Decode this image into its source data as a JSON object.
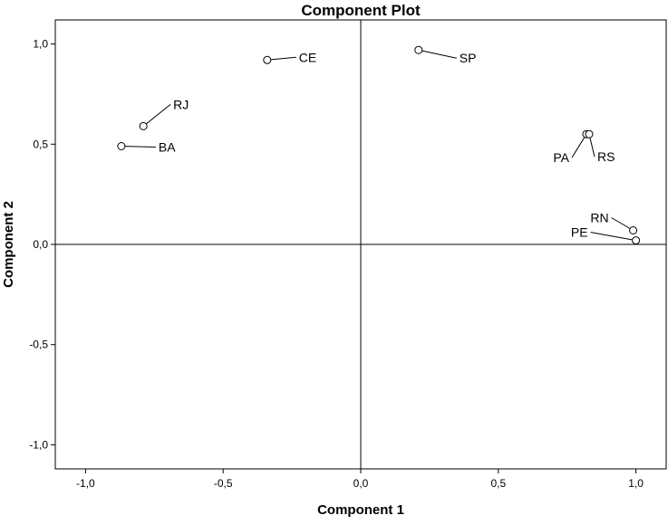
{
  "chart_data": {
    "type": "scatter",
    "title": "Component Plot",
    "xlabel": "Component 1",
    "ylabel": "Component 2",
    "xlim": [
      -1.11,
      1.11
    ],
    "ylim": [
      -1.12,
      1.12
    ],
    "x_ticks": [
      {
        "value": -1.0,
        "label": "-1,0"
      },
      {
        "value": -0.5,
        "label": "-0,5"
      },
      {
        "value": 0.0,
        "label": "0,0"
      },
      {
        "value": 0.5,
        "label": "0,5"
      },
      {
        "value": 1.0,
        "label": "1,0"
      }
    ],
    "y_ticks": [
      {
        "value": 1.0,
        "label": "1,0"
      },
      {
        "value": 0.5,
        "label": "0,5"
      },
      {
        "value": 0.0,
        "label": "0,0"
      },
      {
        "value": -0.5,
        "label": "-0,5"
      },
      {
        "value": -1.0,
        "label": "-1,0"
      }
    ],
    "grid": false,
    "reference_lines": {
      "x": 0,
      "y": 0
    },
    "points": [
      {
        "label": "CE",
        "x": -0.34,
        "y": 0.92
      },
      {
        "label": "SP",
        "x": 0.21,
        "y": 0.97
      },
      {
        "label": "RJ",
        "x": -0.79,
        "y": 0.59
      },
      {
        "label": "BA",
        "x": -0.87,
        "y": 0.49
      },
      {
        "label": "PA",
        "x": 0.82,
        "y": 0.55
      },
      {
        "label": "RS",
        "x": 0.83,
        "y": 0.55
      },
      {
        "label": "RN",
        "x": 0.99,
        "y": 0.07
      },
      {
        "label": "PE",
        "x": 1.0,
        "y": 0.02
      }
    ]
  }
}
